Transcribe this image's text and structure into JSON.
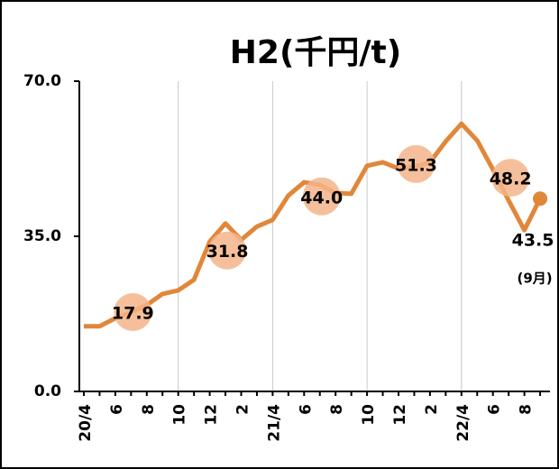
{
  "chart_data": {
    "type": "line",
    "title": "H2(千円/t)",
    "categories": [
      "20/4",
      null,
      "6",
      null,
      "8",
      null,
      "10",
      null,
      "12",
      null,
      "2",
      null,
      "21/4",
      null,
      "6",
      null,
      "8",
      null,
      "10",
      null,
      "12",
      null,
      "2",
      null,
      "22/4",
      null,
      "6",
      null,
      "8",
      null
    ],
    "series": [
      {
        "color": "#e0873a",
        "values": [
          14.7,
          14.7,
          16.5,
          17.9,
          19.5,
          22.0,
          22.8,
          25.2,
          33.8,
          37.9,
          34.2,
          37.2,
          38.7,
          44.2,
          47.2,
          46.6,
          44.8,
          44.6,
          50.9,
          51.7,
          50.3,
          50.7,
          51.7,
          56.4,
          60.4,
          56.6,
          50.1,
          43.1,
          36.4,
          43.5
        ],
        "end_label": "43.5",
        "end_note": "(9月)"
      },
      {
        "color": "#f5b48a",
        "values": [
          null,
          null,
          null,
          17.9,
          null,
          null,
          null,
          null,
          null,
          31.8,
          null,
          null,
          null,
          null,
          null,
          44.0,
          null,
          null,
          null,
          null,
          null,
          51.3,
          null,
          null,
          null,
          null,
          null,
          48.2,
          null,
          null
        ],
        "value_labels": [
          null,
          null,
          null,
          "17.9",
          null,
          null,
          null,
          null,
          null,
          "31.8",
          null,
          null,
          null,
          null,
          null,
          "44.0",
          null,
          null,
          null,
          null,
          null,
          "51.3",
          null,
          null,
          null,
          null,
          null,
          "48.2",
          null,
          null
        ]
      }
    ],
    "ylim": [
      0,
      70
    ],
    "yticks": [
      {
        "value": 0,
        "label": "0.0"
      },
      {
        "value": 35,
        "label": "35.0"
      },
      {
        "value": 70,
        "label": "70.0"
      }
    ],
    "xgrid_categories": [
      6,
      12,
      18,
      24
    ]
  }
}
